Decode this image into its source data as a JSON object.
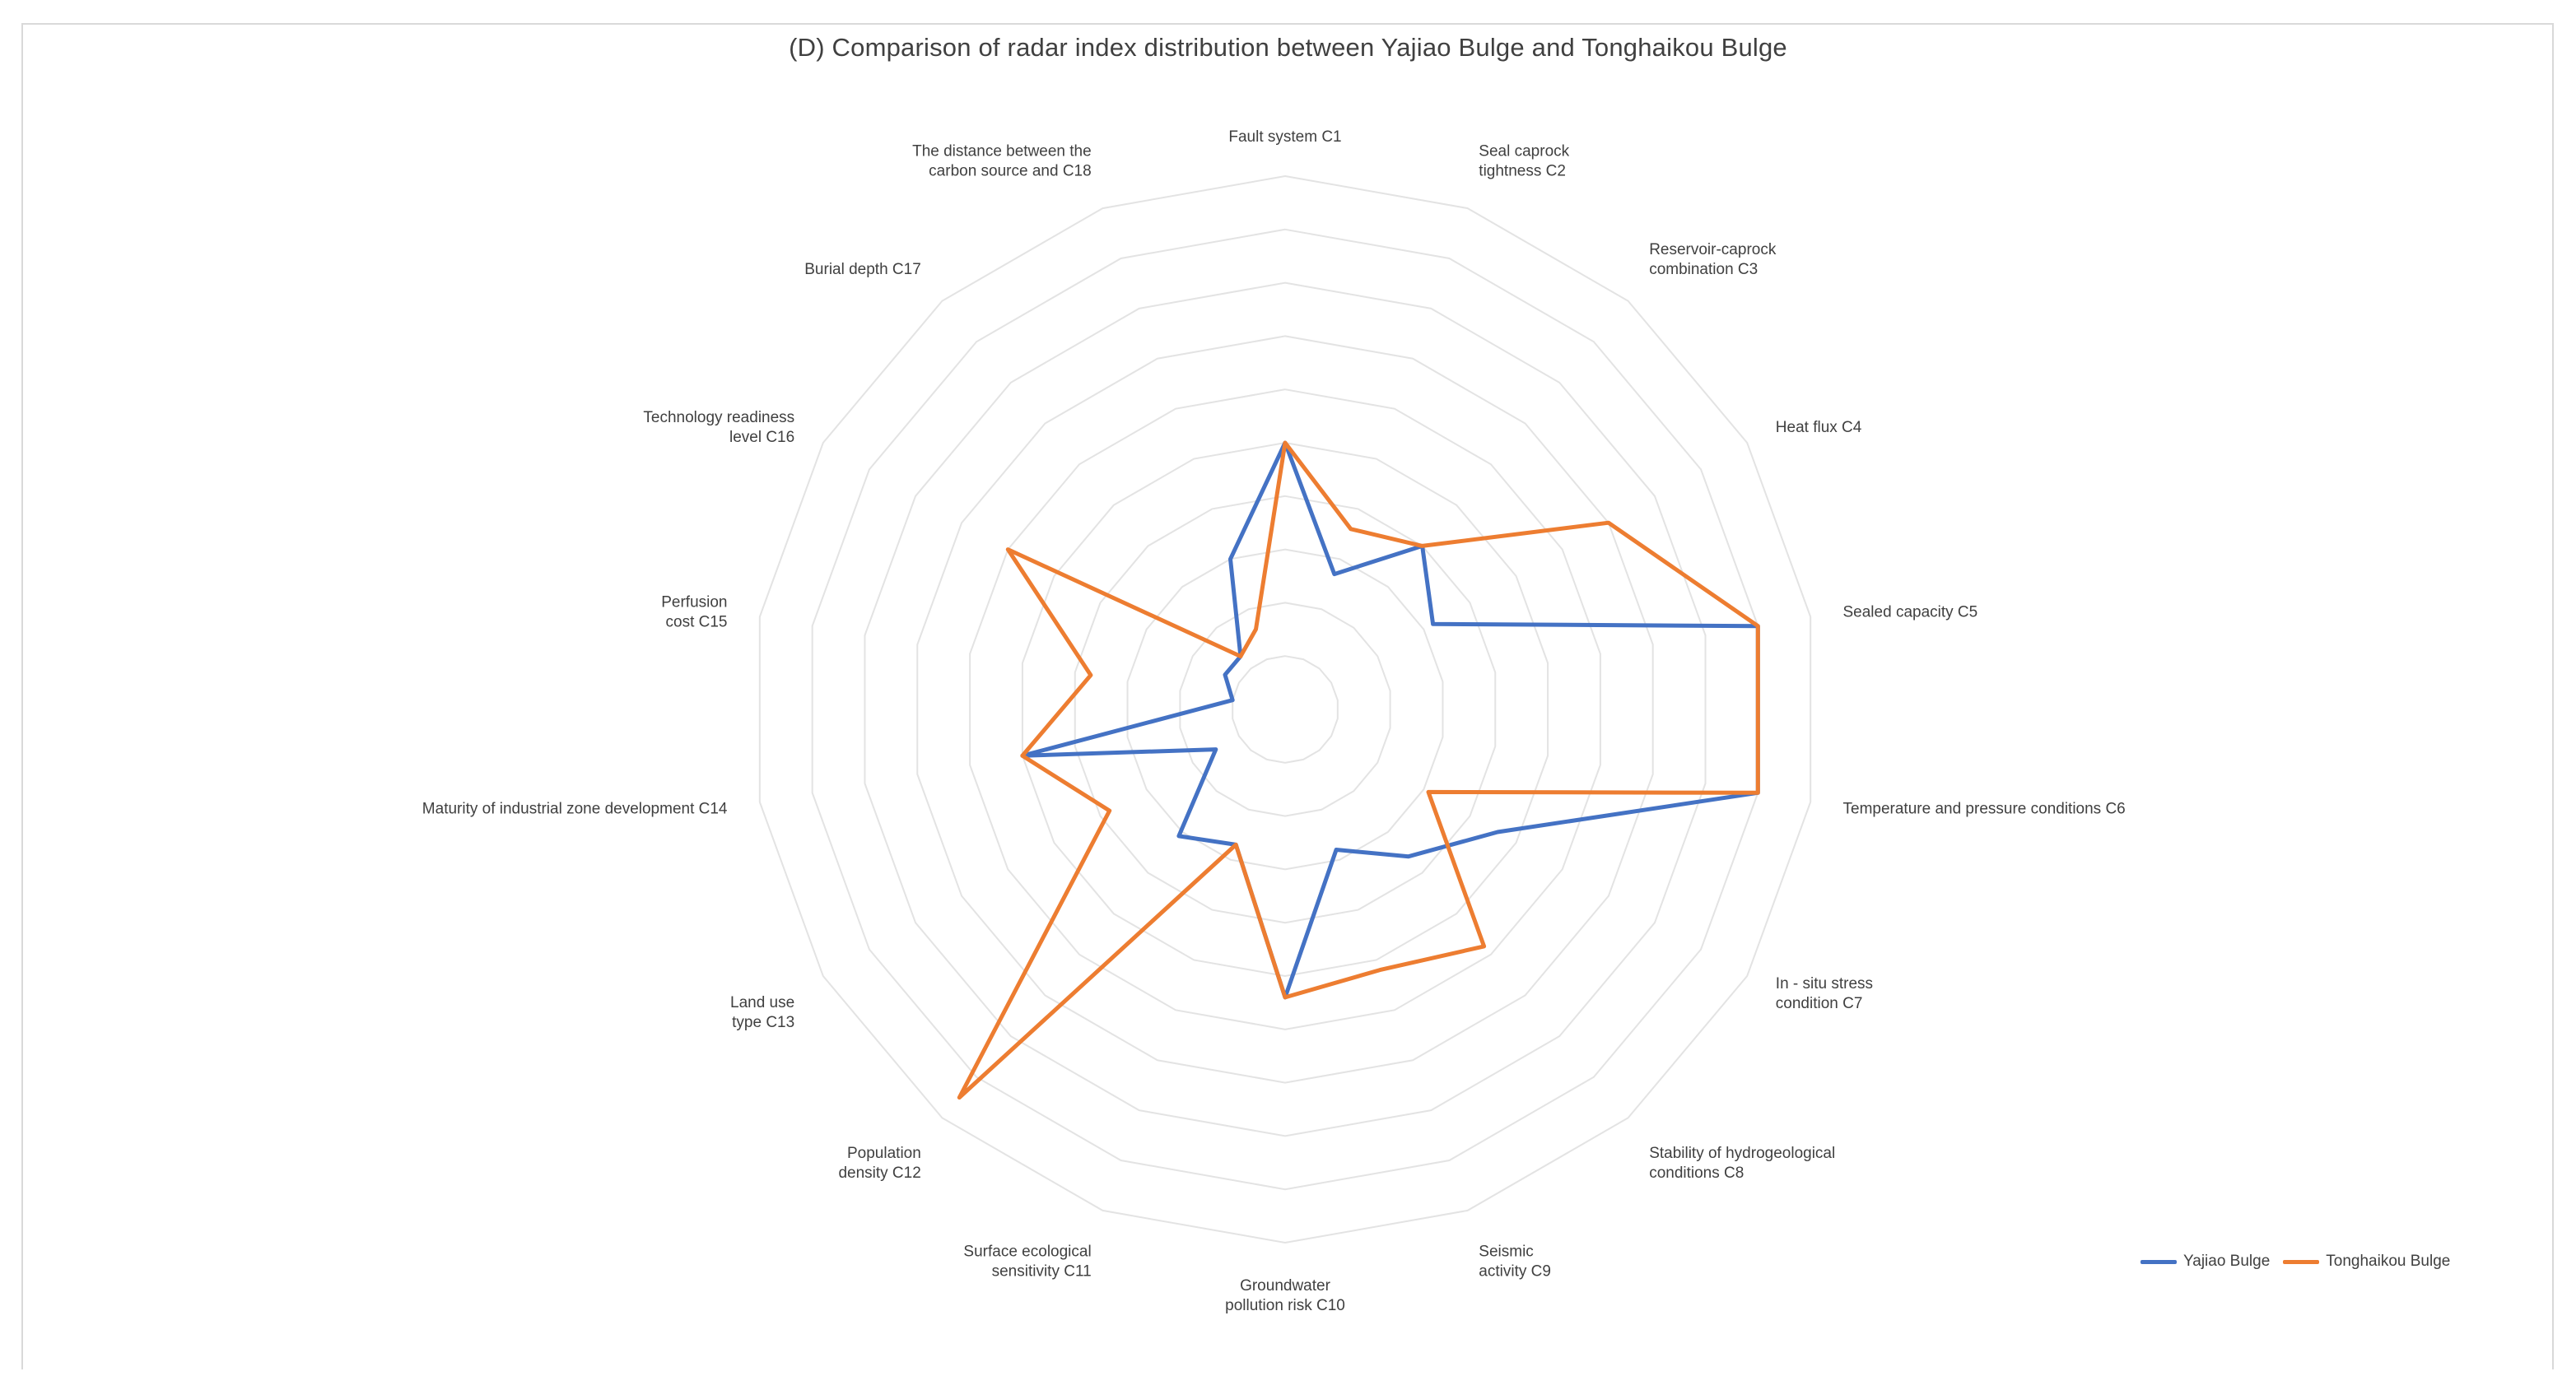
{
  "chart_data": {
    "type": "radar",
    "title": "(D) Comparison of radar index distribution between Yajiao Bulge and Tonghaikou Bulge",
    "categories": [
      "Fault system C1",
      "Seal caprock\ntightness C2",
      "Reservoir-caprock\ncombination C3",
      "Heat flux C4",
      "Sealed capacity C5",
      "Temperature and pressure conditions C6",
      "In - situ stress\ncondition C7",
      "Stability of hydrogeological\nconditions C8",
      "Seismic\nactivity C9",
      "Groundwater\npollution risk C10",
      "Surface ecological\nsensitivity C11",
      "Population\ndensity C12",
      "Land use\ntype C13",
      "Maturity of industrial zone development C14",
      "Perfusion\ncost C15",
      "Technology readiness\nlevel C16",
      "Burial depth C17",
      "The distance between the\ncarbon source and C18"
    ],
    "rmax": 10,
    "rings": 10,
    "grid": true,
    "series": [
      {
        "name": "Yajiao Bulge",
        "color": "#4472c4",
        "values": [
          5.0,
          2.7,
          4.0,
          3.2,
          9.0,
          9.0,
          4.6,
          3.6,
          2.8,
          5.4,
          2.7,
          3.1,
          1.5,
          5.0,
          1.0,
          1.3,
          1.3,
          3.0
        ]
      },
      {
        "name": "Tonghaikou Bulge",
        "color": "#ed7d31",
        "values": [
          5.0,
          3.6,
          4.0,
          7.0,
          9.0,
          9.0,
          3.1,
          5.8,
          5.2,
          5.4,
          2.7,
          9.5,
          3.8,
          5.0,
          3.7,
          6.0,
          1.3,
          1.6
        ]
      }
    ],
    "legend_position": "bottom-right"
  }
}
